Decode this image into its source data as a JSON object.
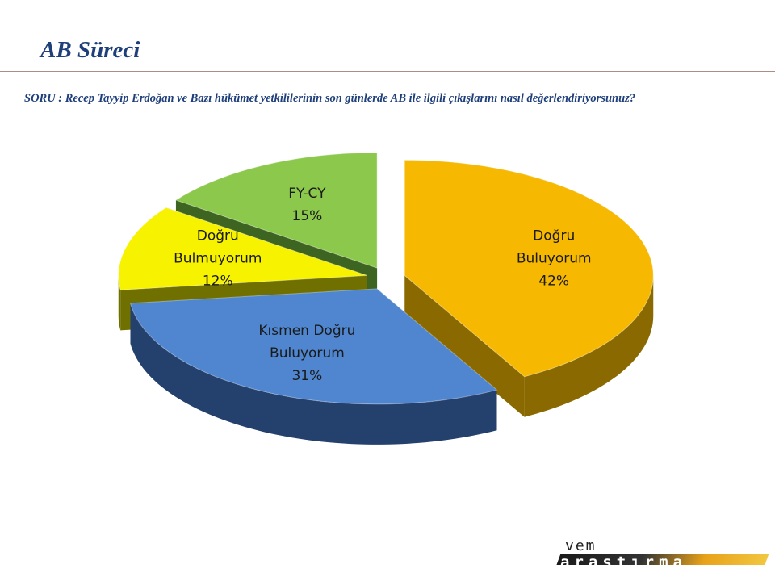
{
  "slide": {
    "title": "AB Süreci",
    "question": "SORU : Recep Tayyip Erdoğan ve Bazı hükümet yetkililerinin son günlerde AB ile ilgili çıkışlarını nasıl değerlendiriyorsunuz?"
  },
  "logo": {
    "line1": "vem",
    "line2": "araştırma"
  },
  "chart_data": {
    "type": "pie",
    "title": "",
    "slices": [
      {
        "label_lines": [
          "Doğru",
          "Buluyorum"
        ],
        "value": 42,
        "value_label": "42%",
        "color": "#f6b800",
        "side_color": "#8a6a00"
      },
      {
        "label_lines": [
          "Kısmen Doğru",
          "Buluyorum"
        ],
        "value": 31,
        "value_label": "31%",
        "color": "#4f86cf",
        "side_color": "#24406d"
      },
      {
        "label_lines": [
          "Doğru",
          "Bulmuyorum"
        ],
        "value": 12,
        "value_label": "12%",
        "color": "#f6f200",
        "side_color": "#707000"
      },
      {
        "label_lines": [
          "FY-CY"
        ],
        "value": 15,
        "value_label": "15%",
        "color": "#8bc84c",
        "side_color": "#3d6420"
      }
    ],
    "legend": "none"
  }
}
